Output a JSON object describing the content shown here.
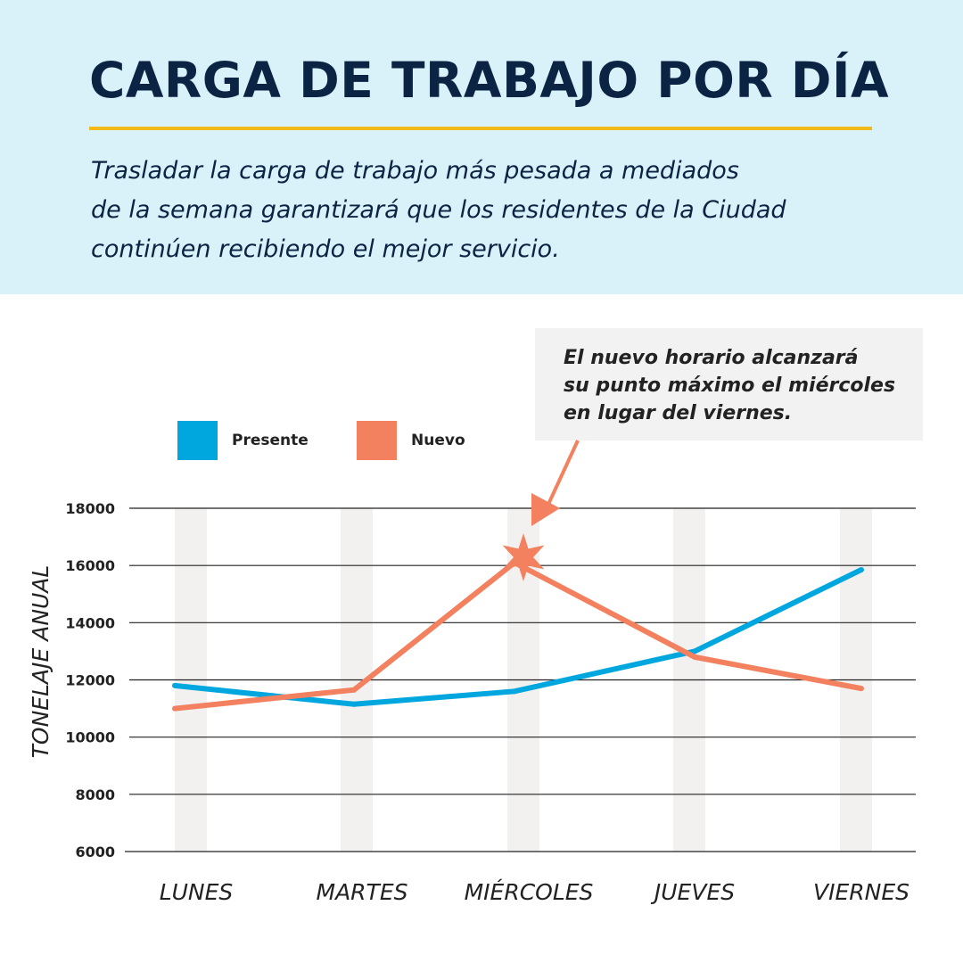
{
  "header": {
    "title": "CARGA DE TRABAJO POR DÍA",
    "subtitle_lines": [
      "Trasladar la carga de trabajo más pesada a mediados",
      "de la semana garantizará que los residentes de la Ciudad",
      "continúen recibiendo el mejor servicio."
    ]
  },
  "callout": {
    "lines": [
      "El nuevo horario alcanzará",
      "su punto máximo el miércoles",
      "en lugar del viernes."
    ]
  },
  "colors": {
    "presente": "#00a7df",
    "nuevo": "#f3805e",
    "title": "#0c2444",
    "rule": "#f2b91b",
    "header_bg": "#d9f1f9"
  },
  "chart_data": {
    "type": "line",
    "categories": [
      "LUNES",
      "MARTES",
      "MIÉRCOLES",
      "JUEVES",
      "VIERNES"
    ],
    "series": [
      {
        "name": "Presente",
        "values": [
          11800,
          11150,
          11600,
          13000,
          15850
        ]
      },
      {
        "name": "Nuevo",
        "values": [
          11000,
          11650,
          16100,
          12800,
          11700
        ]
      }
    ],
    "yticks": [
      18000,
      16000,
      14000,
      12000,
      10000,
      8000,
      6000
    ],
    "ylim": [
      6000,
      18000
    ],
    "ylabel": "TONELAJE ANUAL",
    "xlabel": "",
    "legend_position": "top-left",
    "peak_marker": {
      "series": "Nuevo",
      "category": "MIÉRCOLES"
    },
    "grid": true
  }
}
